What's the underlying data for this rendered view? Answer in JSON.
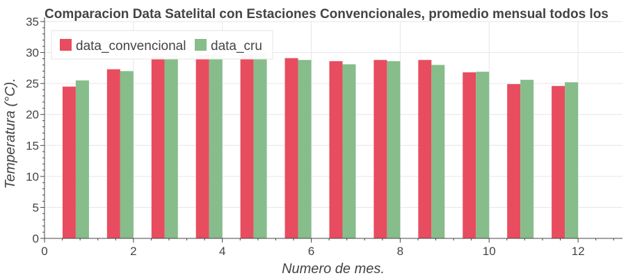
{
  "chart_data": {
    "type": "bar",
    "title": "Comparacion Data Satelital con Estaciones Convencionales, promedio mensual todos los",
    "xlabel": "Numero de mes.",
    "ylabel": "Temperatura (°C).",
    "xlim": [
      0,
      13
    ],
    "ylim": [
      0,
      35
    ],
    "xticks": [
      "0",
      "2",
      "4",
      "6",
      "8",
      "10",
      "12"
    ],
    "yticks": [
      "0",
      "5",
      "10",
      "15",
      "20",
      "25",
      "30",
      "35"
    ],
    "categories": [
      1,
      2,
      3,
      4,
      5,
      6,
      7,
      8,
      9,
      10,
      11,
      12
    ],
    "grid": true,
    "legend_position": "top-left",
    "series": [
      {
        "name": "data_convencional",
        "color": "#e84c5f",
        "values": [
          24.5,
          27.3,
          29.4,
          29.6,
          29.6,
          29.1,
          28.6,
          28.8,
          28.8,
          26.8,
          24.9,
          24.6
        ]
      },
      {
        "name": "data_cru",
        "color": "#86bd8b",
        "values": [
          25.5,
          27.0,
          29.6,
          29.6,
          30.0,
          28.8,
          28.1,
          28.6,
          28.0,
          26.9,
          25.6,
          25.2
        ]
      }
    ]
  }
}
